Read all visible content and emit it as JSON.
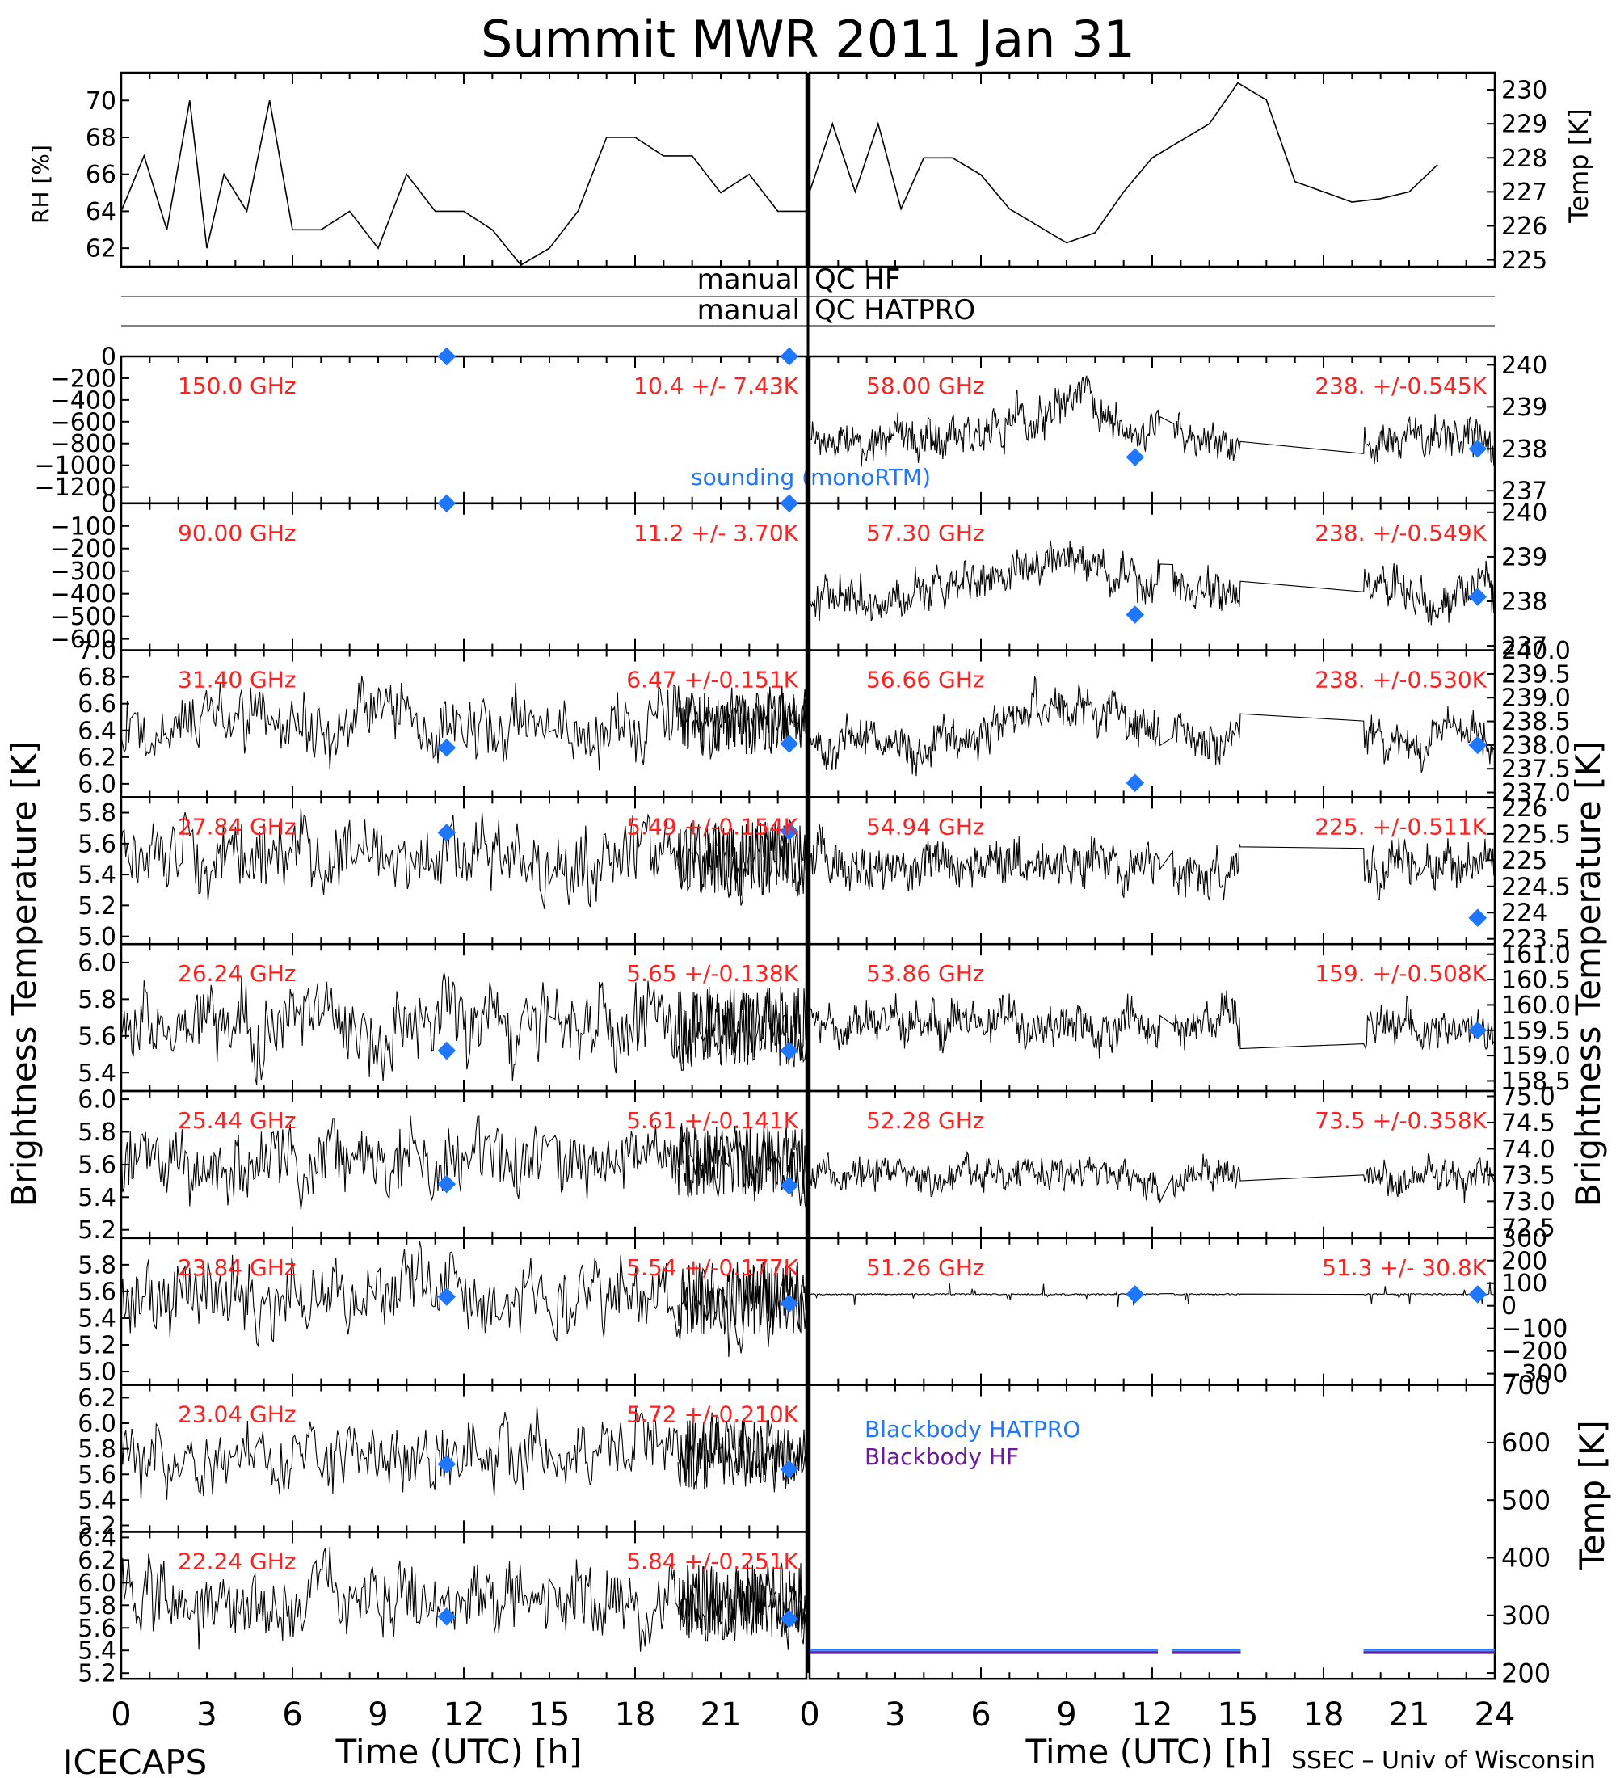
{
  "header": {
    "title": "Summit MWR 2011 Jan 31",
    "footer_left": "ICECAPS",
    "footer_right": "SSEC – Univ of Wisconsin"
  },
  "labels": {
    "rh_axis": "RH [%]",
    "temp_axis": "Temp [K]",
    "tb_axis_left": "Brightness Temperature [K]",
    "tb_axis_right": "Brightness Temperature [K]",
    "bb_axis": "Temp [K]",
    "x_axis_left": "Time (UTC) [h]",
    "x_axis_right": "Time (UTC) [h]",
    "qc_manual_1": "manual",
    "qc_hf": "QC HF",
    "qc_manual_2": "manual",
    "qc_hatpro": "QC HATPRO",
    "sounding": "sounding (monoRTM)",
    "bb_hatpro": "Blackbody HATPRO",
    "bb_hf": "Blackbody HF"
  },
  "colors": {
    "freq_text": "#ff2020",
    "sounding": "#1f77ff",
    "bb_hatpro": "#1f77ff",
    "bb_hf": "#6a1a9a",
    "trace": "#000000"
  },
  "chart_data": [
    {
      "type": "line",
      "panel": "RH",
      "ylabel": "RH [%]",
      "ylim": [
        61,
        71.5
      ],
      "yticks": [
        "62",
        "64",
        "66",
        "68",
        "70"
      ],
      "xlim": [
        0,
        12
      ],
      "series": [
        {
          "x": [
            0,
            0.4,
            0.8,
            1.2,
            1.5,
            1.8,
            2.2,
            2.6,
            3.0,
            3.5,
            4.0,
            4.5,
            5.0,
            5.5,
            6.0,
            6.5,
            7.0,
            7.5,
            8.0,
            8.5,
            9.0,
            9.5,
            10.0,
            10.5,
            11.0,
            11.5,
            12.0
          ],
          "y": [
            64,
            67,
            63,
            70,
            62,
            66,
            64,
            70,
            63,
            63,
            64,
            62,
            66,
            64,
            64,
            63,
            61,
            62,
            64,
            68,
            68,
            67,
            67,
            65,
            66,
            64,
            64
          ]
        }
      ]
    },
    {
      "type": "line",
      "panel": "Temp",
      "ylabel": "Temp [K]",
      "ylim": [
        224.8,
        230.5
      ],
      "yticks": [
        "225",
        "226",
        "227",
        "228",
        "229",
        "230"
      ],
      "xlim": [
        12,
        24
      ],
      "series": [
        {
          "x": [
            12,
            12.4,
            12.8,
            13.2,
            13.6,
            14.0,
            14.5,
            15.0,
            15.5,
            16.0,
            16.5,
            17.0,
            17.5,
            18.0,
            18.5,
            19.0,
            19.5,
            20.0,
            20.5,
            21.0,
            21.5,
            22.0,
            22.5,
            23.0
          ],
          "y": [
            227,
            229,
            227,
            229,
            226.5,
            228,
            228,
            227.5,
            226.5,
            226,
            225.5,
            225.8,
            227,
            228,
            228.5,
            229,
            230.2,
            229.7,
            227.3,
            227,
            226.7,
            226.8,
            227,
            227.8
          ]
        }
      ]
    },
    {
      "type": "scatter",
      "panel": "150.0 GHz",
      "freq": "150.0 GHz",
      "stats": "10.4 +/-  7.43K",
      "yticks": [
        "0",
        "−200",
        "−400",
        "−600",
        "−800",
        "−1000",
        "−1200"
      ],
      "ylim": [
        -1350,
        0
      ],
      "base": 0,
      "amp": 0,
      "sounding": [
        [
          11.4,
          0
        ],
        [
          23.4,
          0
        ]
      ]
    },
    {
      "type": "scatter",
      "panel": "90.00 GHz",
      "freq": "90.00 GHz",
      "stats": "11.2 +/-  3.70K",
      "yticks": [
        "0",
        "−100",
        "−200",
        "−300",
        "−400",
        "−500",
        "−600"
      ],
      "ylim": [
        -650,
        0
      ],
      "base": 0,
      "amp": 0,
      "sounding": [
        [
          11.4,
          0
        ],
        [
          23.4,
          0
        ]
      ]
    },
    {
      "type": "scatter",
      "panel": "31.40 GHz",
      "freq": "31.40 GHz",
      "stats": "6.47 +/-0.151K",
      "yticks": [
        "7.0",
        "6.8",
        "6.6",
        "6.4",
        "6.2",
        "6.0"
      ],
      "ylim": [
        5.9,
        7.0
      ],
      "base": 6.45,
      "amp": 0.22,
      "sounding": [
        [
          11.4,
          6.27
        ],
        [
          23.4,
          6.3
        ]
      ]
    },
    {
      "type": "scatter",
      "panel": "27.84 GHz",
      "freq": "27.84 GHz",
      "stats": "5.49 +/-0.154K",
      "yticks": [
        "5.8",
        "5.6",
        "5.4",
        "5.2",
        "5.0"
      ],
      "ylim": [
        4.95,
        5.9
      ],
      "base": 5.5,
      "amp": 0.22,
      "sounding": [
        [
          11.4,
          5.67
        ],
        [
          23.4,
          5.68
        ]
      ]
    },
    {
      "type": "scatter",
      "panel": "26.24 GHz",
      "freq": "26.24 GHz",
      "stats": "5.65 +/-0.138K",
      "yticks": [
        "6.0",
        "5.8",
        "5.6",
        "5.4"
      ],
      "ylim": [
        5.3,
        6.1
      ],
      "base": 5.65,
      "amp": 0.2,
      "sounding": [
        [
          11.4,
          5.52
        ],
        [
          23.4,
          5.52
        ]
      ]
    },
    {
      "type": "scatter",
      "panel": "25.44 GHz",
      "freq": "25.44 GHz",
      "stats": "5.61 +/-0.141K",
      "yticks": [
        "6.0",
        "5.8",
        "5.6",
        "5.4",
        "5.2"
      ],
      "ylim": [
        5.15,
        6.05
      ],
      "base": 5.62,
      "amp": 0.2,
      "sounding": [
        [
          11.4,
          5.48
        ],
        [
          23.4,
          5.47
        ]
      ]
    },
    {
      "type": "scatter",
      "panel": "23.84 GHz",
      "freq": "23.84 GHz",
      "stats": "5.54 +/-0.177K",
      "yticks": [
        "5.8",
        "5.6",
        "5.4",
        "5.2",
        "5.0"
      ],
      "ylim": [
        4.9,
        6.0
      ],
      "base": 5.55,
      "amp": 0.25,
      "sounding": [
        [
          11.4,
          5.56
        ],
        [
          23.4,
          5.51
        ]
      ]
    },
    {
      "type": "scatter",
      "panel": "23.04 GHz",
      "freq": "23.04 GHz",
      "stats": "5.72 +/-0.210K",
      "yticks": [
        "6.2",
        "6.0",
        "5.8",
        "5.6",
        "5.4",
        "5.2"
      ],
      "ylim": [
        5.15,
        6.3
      ],
      "base": 5.75,
      "amp": 0.25,
      "sounding": [
        [
          11.4,
          5.68
        ],
        [
          23.4,
          5.64
        ]
      ]
    },
    {
      "type": "scatter",
      "panel": "22.24 GHz",
      "freq": "22.24 GHz",
      "stats": "5.84 +/-0.251K",
      "yticks": [
        "6.4",
        "6.2",
        "6.0",
        "5.8",
        "5.6",
        "5.4",
        "5.2"
      ],
      "ylim": [
        5.15,
        6.45
      ],
      "base": 5.85,
      "amp": 0.3,
      "sounding": [
        [
          11.4,
          5.7
        ],
        [
          23.4,
          5.68
        ]
      ]
    },
    {
      "type": "scatter",
      "panel": "58.00 GHz",
      "freq": "58.00 GHz",
      "stats": "238. +/-0.545K",
      "yticks": [
        "240",
        "239",
        "238",
        "237"
      ],
      "ylim": [
        236.7,
        240.2
      ],
      "base": 238.4,
      "amp": 0.5,
      "sounding": [
        [
          11.4,
          237.8
        ],
        [
          23.4,
          238.0
        ]
      ]
    },
    {
      "type": "scatter",
      "panel": "57.30 GHz",
      "freq": "57.30 GHz",
      "stats": "238. +/-0.549K",
      "yticks": [
        "240",
        "239",
        "238",
        "237"
      ],
      "ylim": [
        236.9,
        240.2
      ],
      "base": 238.3,
      "amp": 0.5,
      "sounding": [
        [
          11.4,
          237.7
        ],
        [
          23.4,
          238.1
        ]
      ]
    },
    {
      "type": "scatter",
      "panel": "56.66 GHz",
      "freq": "56.66 GHz",
      "stats": "238. +/-0.530K",
      "yticks": [
        "240.0",
        "239.5",
        "239.0",
        "238.5",
        "238.0",
        "237.5",
        "237.0"
      ],
      "ylim": [
        236.9,
        240.0
      ],
      "base": 238.3,
      "amp": 0.45,
      "sounding": [
        [
          11.4,
          237.2
        ],
        [
          23.4,
          238.0
        ]
      ]
    },
    {
      "type": "scatter",
      "panel": "54.94 GHz",
      "freq": "54.94 GHz",
      "stats": "225. +/-0.511K",
      "yticks": [
        "226",
        "225.5",
        "225",
        "224.5",
        "224",
        "223.5"
      ],
      "ylim": [
        223.4,
        226.2
      ],
      "base": 224.9,
      "amp": 0.45,
      "sounding": [
        [
          23.4,
          223.9
        ]
      ]
    },
    {
      "type": "scatter",
      "panel": "53.86 GHz",
      "freq": "53.86 GHz",
      "stats": "159. +/-0.508K",
      "yticks": [
        "161.0",
        "160.5",
        "160.0",
        "159.5",
        "159.0",
        "158.5"
      ],
      "ylim": [
        158.3,
        161.2
      ],
      "base": 159.6,
      "amp": 0.45,
      "sounding": [
        [
          23.4,
          159.5
        ]
      ]
    },
    {
      "type": "scatter",
      "panel": "52.28 GHz",
      "freq": "52.28 GHz",
      "stats": "73.5 +/-0.358K",
      "yticks": [
        "75.0",
        "74.5",
        "74.0",
        "73.5",
        "73.0",
        "72.5"
      ],
      "ylim": [
        72.3,
        75.1
      ],
      "base": 73.5,
      "amp": 0.35,
      "sounding": []
    },
    {
      "type": "scatter",
      "panel": "51.26 GHz",
      "freq": "51.26 GHz",
      "stats": "51.3 +/-  30.8K",
      "yticks": [
        "300",
        "200",
        "100",
        "0",
        "−100",
        "−200",
        "−300"
      ],
      "ylim": [
        -350,
        300
      ],
      "base": 51,
      "amp": 4,
      "sounding": [
        [
          11.4,
          51
        ],
        [
          23.4,
          51
        ]
      ]
    },
    {
      "type": "line",
      "panel": "Blackbody",
      "ylabel": "Temp [K]",
      "yticks": [
        "700",
        "600",
        "500",
        "400",
        "300",
        "200"
      ],
      "ylim": [
        190,
        700
      ],
      "series": [
        {
          "name": "Blackbody HATPRO",
          "value": 240
        },
        {
          "name": "Blackbody HF",
          "value": 236
        }
      ]
    }
  ],
  "x_ticks": [
    "0",
    "3",
    "6",
    "9",
    "12",
    "15",
    "18",
    "21",
    "0",
    "3",
    "6",
    "9",
    "12",
    "15",
    "18",
    "21",
    "24"
  ]
}
